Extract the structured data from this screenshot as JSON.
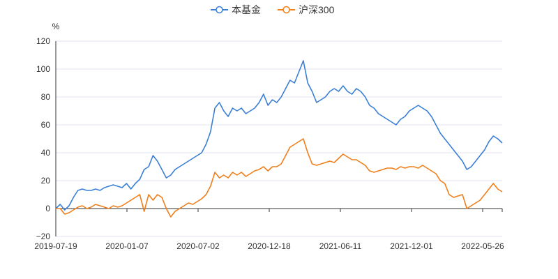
{
  "chart_data": {
    "type": "line",
    "unit": "%",
    "ylim": [
      -20,
      120
    ],
    "yticks": [
      -20,
      0,
      20,
      40,
      60,
      80,
      100,
      120
    ],
    "x_tick_labels": [
      "2019-07-19",
      "2020-01-07",
      "2020-07-02",
      "2020-12-18",
      "2021-06-11",
      "2021-12-01",
      "2022-05-26"
    ],
    "grid": "horizontal",
    "legend_position": "top-center",
    "series": [
      {
        "name": "本基金",
        "color": "#3a7fd5",
        "values": [
          0,
          3,
          -1,
          2,
          8,
          13,
          14,
          13,
          13,
          14,
          13,
          15,
          16,
          17,
          16,
          15,
          18,
          14,
          18,
          21,
          28,
          30,
          38,
          34,
          28,
          22,
          24,
          28,
          30,
          32,
          34,
          36,
          38,
          40,
          46,
          55,
          72,
          76,
          70,
          66,
          72,
          70,
          72,
          68,
          70,
          72,
          76,
          82,
          74,
          78,
          76,
          80,
          86,
          92,
          90,
          98,
          106,
          90,
          84,
          76,
          78,
          80,
          84,
          86,
          84,
          88,
          84,
          82,
          86,
          84,
          80,
          74,
          72,
          68,
          66,
          64,
          62,
          60,
          64,
          66,
          70,
          72,
          74,
          72,
          70,
          66,
          60,
          54,
          50,
          46,
          42,
          38,
          34,
          28,
          30,
          34,
          38,
          42,
          48,
          52,
          50,
          47
        ]
      },
      {
        "name": "沪深300",
        "color": "#f07e1b",
        "values": [
          0,
          0,
          -4,
          -3,
          -1,
          1,
          2,
          0,
          1,
          3,
          2,
          1,
          0,
          2,
          1,
          2,
          4,
          6,
          8,
          10,
          -2,
          10,
          6,
          10,
          8,
          0,
          -6,
          -2,
          0,
          2,
          4,
          3,
          5,
          7,
          10,
          16,
          26,
          22,
          24,
          22,
          26,
          24,
          26,
          23,
          25,
          27,
          28,
          30,
          27,
          30,
          30,
          32,
          38,
          44,
          46,
          48,
          50,
          40,
          32,
          31,
          32,
          33,
          34,
          33,
          36,
          39,
          37,
          35,
          35,
          33,
          31,
          27,
          26,
          27,
          28,
          29,
          29,
          28,
          30,
          29,
          30,
          30,
          29,
          31,
          29,
          27,
          25,
          20,
          18,
          10,
          8,
          9,
          10,
          0,
          2,
          4,
          6,
          10,
          14,
          18,
          14,
          12
        ]
      }
    ]
  }
}
